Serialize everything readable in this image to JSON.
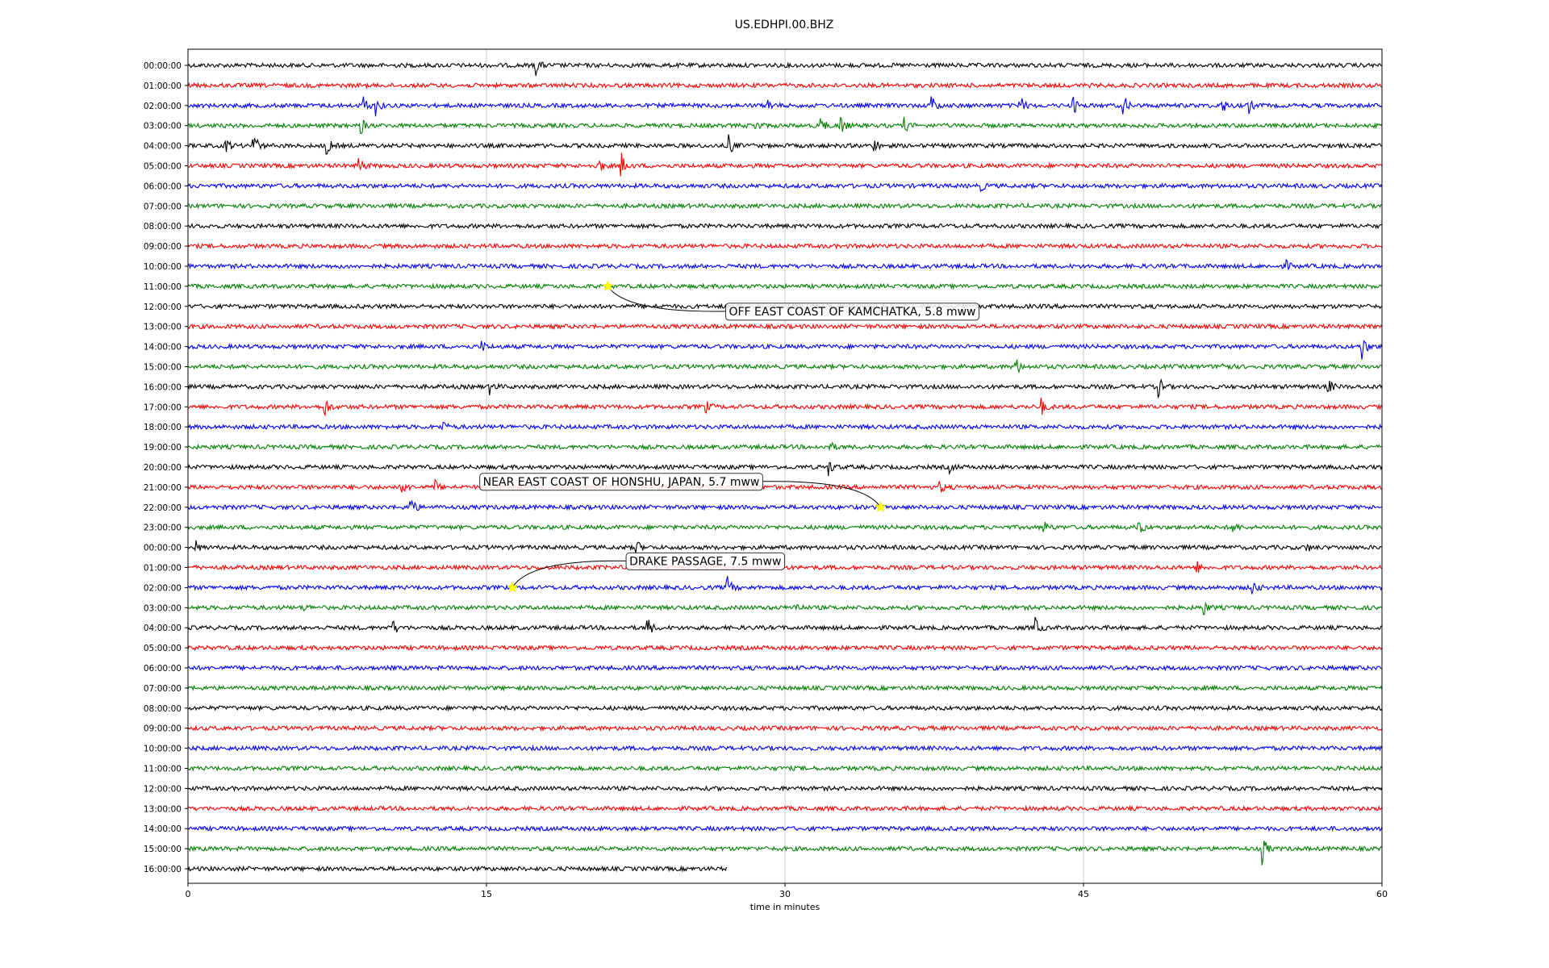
{
  "chart_data": {
    "type": "line",
    "title": "US.EDHPI.00.BHZ",
    "xlabel": "time in minutes",
    "xlim": [
      0,
      60
    ],
    "xticks": [
      0,
      15,
      30,
      45,
      60
    ],
    "grid": "vertical lines at 15, 30, 45",
    "row_colors": [
      "#000000",
      "#ff0000",
      "#0000ff",
      "#008000"
    ],
    "rows": [
      {
        "label": "00:00:00",
        "events": [
          {
            "t": 17.4,
            "a": 1.3
          }
        ]
      },
      {
        "label": "01:00:00",
        "events": []
      },
      {
        "label": "02:00:00",
        "events": [
          {
            "t": 8.8,
            "a": 0.9
          },
          {
            "t": 9.4,
            "a": 1.0
          },
          {
            "t": 29.2,
            "a": 0.5
          },
          {
            "t": 37.4,
            "a": 0.9
          },
          {
            "t": 41.8,
            "a": 1.0
          },
          {
            "t": 44.5,
            "a": 0.7
          },
          {
            "t": 47.0,
            "a": 1.0
          },
          {
            "t": 52.0,
            "a": 0.6
          },
          {
            "t": 53.3,
            "a": 0.6
          }
        ]
      },
      {
        "label": "03:00:00",
        "events": [
          {
            "t": 8.6,
            "a": 1.2
          },
          {
            "t": 28.5,
            "a": 0.6
          },
          {
            "t": 31.8,
            "a": 0.8
          },
          {
            "t": 32.8,
            "a": 0.9
          },
          {
            "t": 36.0,
            "a": 0.6
          }
        ]
      },
      {
        "label": "04:00:00",
        "events": [
          {
            "t": 1.9,
            "a": 0.7
          },
          {
            "t": 3.3,
            "a": 1.2
          },
          {
            "t": 7.0,
            "a": 0.7
          },
          {
            "t": 27.2,
            "a": 0.9
          },
          {
            "t": 34.5,
            "a": 0.6
          }
        ]
      },
      {
        "label": "05:00:00",
        "events": [
          {
            "t": 8.6,
            "a": 0.8
          },
          {
            "t": 20.6,
            "a": 0.9
          },
          {
            "t": 21.8,
            "a": 1.0
          }
        ]
      },
      {
        "label": "06:00:00",
        "events": [
          {
            "t": 39.8,
            "a": 0.5
          }
        ]
      },
      {
        "label": "07:00:00",
        "events": []
      },
      {
        "label": "08:00:00",
        "events": []
      },
      {
        "label": "09:00:00",
        "events": []
      },
      {
        "label": "10:00:00",
        "events": [
          {
            "t": 55.2,
            "a": 0.4
          }
        ]
      },
      {
        "label": "11:00:00",
        "events": []
      },
      {
        "label": "12:00:00",
        "events": []
      },
      {
        "label": "13:00:00",
        "events": []
      },
      {
        "label": "14:00:00",
        "events": [
          {
            "t": 14.8,
            "a": 0.4
          },
          {
            "t": 59.0,
            "a": 1.2
          }
        ]
      },
      {
        "label": "15:00:00",
        "events": [
          {
            "t": 41.6,
            "a": 0.8
          },
          {
            "t": 52.0,
            "a": 0.6
          }
        ]
      },
      {
        "label": "16:00:00",
        "events": [
          {
            "t": 15.2,
            "a": 0.6
          },
          {
            "t": 48.8,
            "a": 0.8
          },
          {
            "t": 57.3,
            "a": 0.7
          }
        ]
      },
      {
        "label": "17:00:00",
        "events": [
          {
            "t": 6.9,
            "a": 0.8
          },
          {
            "t": 26.0,
            "a": 0.6
          },
          {
            "t": 42.9,
            "a": 0.7
          }
        ]
      },
      {
        "label": "18:00:00",
        "events": [
          {
            "t": 12.8,
            "a": 0.5
          }
        ]
      },
      {
        "label": "19:00:00",
        "events": [
          {
            "t": 32.2,
            "a": 0.6
          }
        ]
      },
      {
        "label": "20:00:00",
        "events": [
          {
            "t": 32.2,
            "a": 0.7
          },
          {
            "t": 38.3,
            "a": 0.4
          }
        ]
      },
      {
        "label": "21:00:00",
        "events": [
          {
            "t": 10.8,
            "a": 0.6
          },
          {
            "t": 12.4,
            "a": 0.6
          },
          {
            "t": 37.8,
            "a": 0.5
          }
        ]
      },
      {
        "label": "22:00:00",
        "events": [
          {
            "t": 11.2,
            "a": 1.0
          }
        ]
      },
      {
        "label": "23:00:00",
        "events": [
          {
            "t": 43.0,
            "a": 0.6
          },
          {
            "t": 47.8,
            "a": 0.7
          },
          {
            "t": 52.5,
            "a": 0.5
          }
        ]
      },
      {
        "label": "00:00:00",
        "events": [
          {
            "t": 0.4,
            "a": 0.5
          },
          {
            "t": 22.5,
            "a": 0.8
          },
          {
            "t": 56.2,
            "a": 0.4
          }
        ]
      },
      {
        "label": "01:00:00",
        "events": [
          {
            "t": 50.7,
            "a": 0.5
          }
        ]
      },
      {
        "label": "02:00:00",
        "events": [
          {
            "t": 27.1,
            "a": 1.0
          },
          {
            "t": 53.5,
            "a": 0.7
          }
        ]
      },
      {
        "label": "03:00:00",
        "events": [
          {
            "t": 5.8,
            "a": 0.4
          },
          {
            "t": 30.5,
            "a": 0.5
          },
          {
            "t": 51.0,
            "a": 0.8
          }
        ]
      },
      {
        "label": "04:00:00",
        "events": [
          {
            "t": 10.3,
            "a": 0.7
          },
          {
            "t": 23.1,
            "a": 0.9
          },
          {
            "t": 42.6,
            "a": 0.9
          }
        ]
      },
      {
        "label": "05:00:00",
        "events": []
      },
      {
        "label": "06:00:00",
        "events": []
      },
      {
        "label": "07:00:00",
        "events": []
      },
      {
        "label": "08:00:00",
        "events": []
      },
      {
        "label": "09:00:00",
        "events": []
      },
      {
        "label": "10:00:00",
        "events": []
      },
      {
        "label": "11:00:00",
        "events": []
      },
      {
        "label": "12:00:00",
        "events": []
      },
      {
        "label": "13:00:00",
        "events": []
      },
      {
        "label": "14:00:00",
        "events": []
      },
      {
        "label": "15:00:00",
        "events": [
          {
            "t": 54.0,
            "a": 1.3
          }
        ]
      },
      {
        "label": "16:00:00",
        "events": [],
        "end": 27.1
      }
    ],
    "annotations": [
      {
        "text": "OFF EAST COAST OF KAMCHATKA, 5.8 mww",
        "row": 11,
        "t": 21.1
      },
      {
        "text": "NEAR EAST COAST OF HONSHU, JAPAN, 5.7 mww",
        "row": 22,
        "t": 34.8
      },
      {
        "text": "DRAKE PASSAGE, 7.5 mww",
        "row": 26,
        "t": 16.3
      }
    ]
  }
}
